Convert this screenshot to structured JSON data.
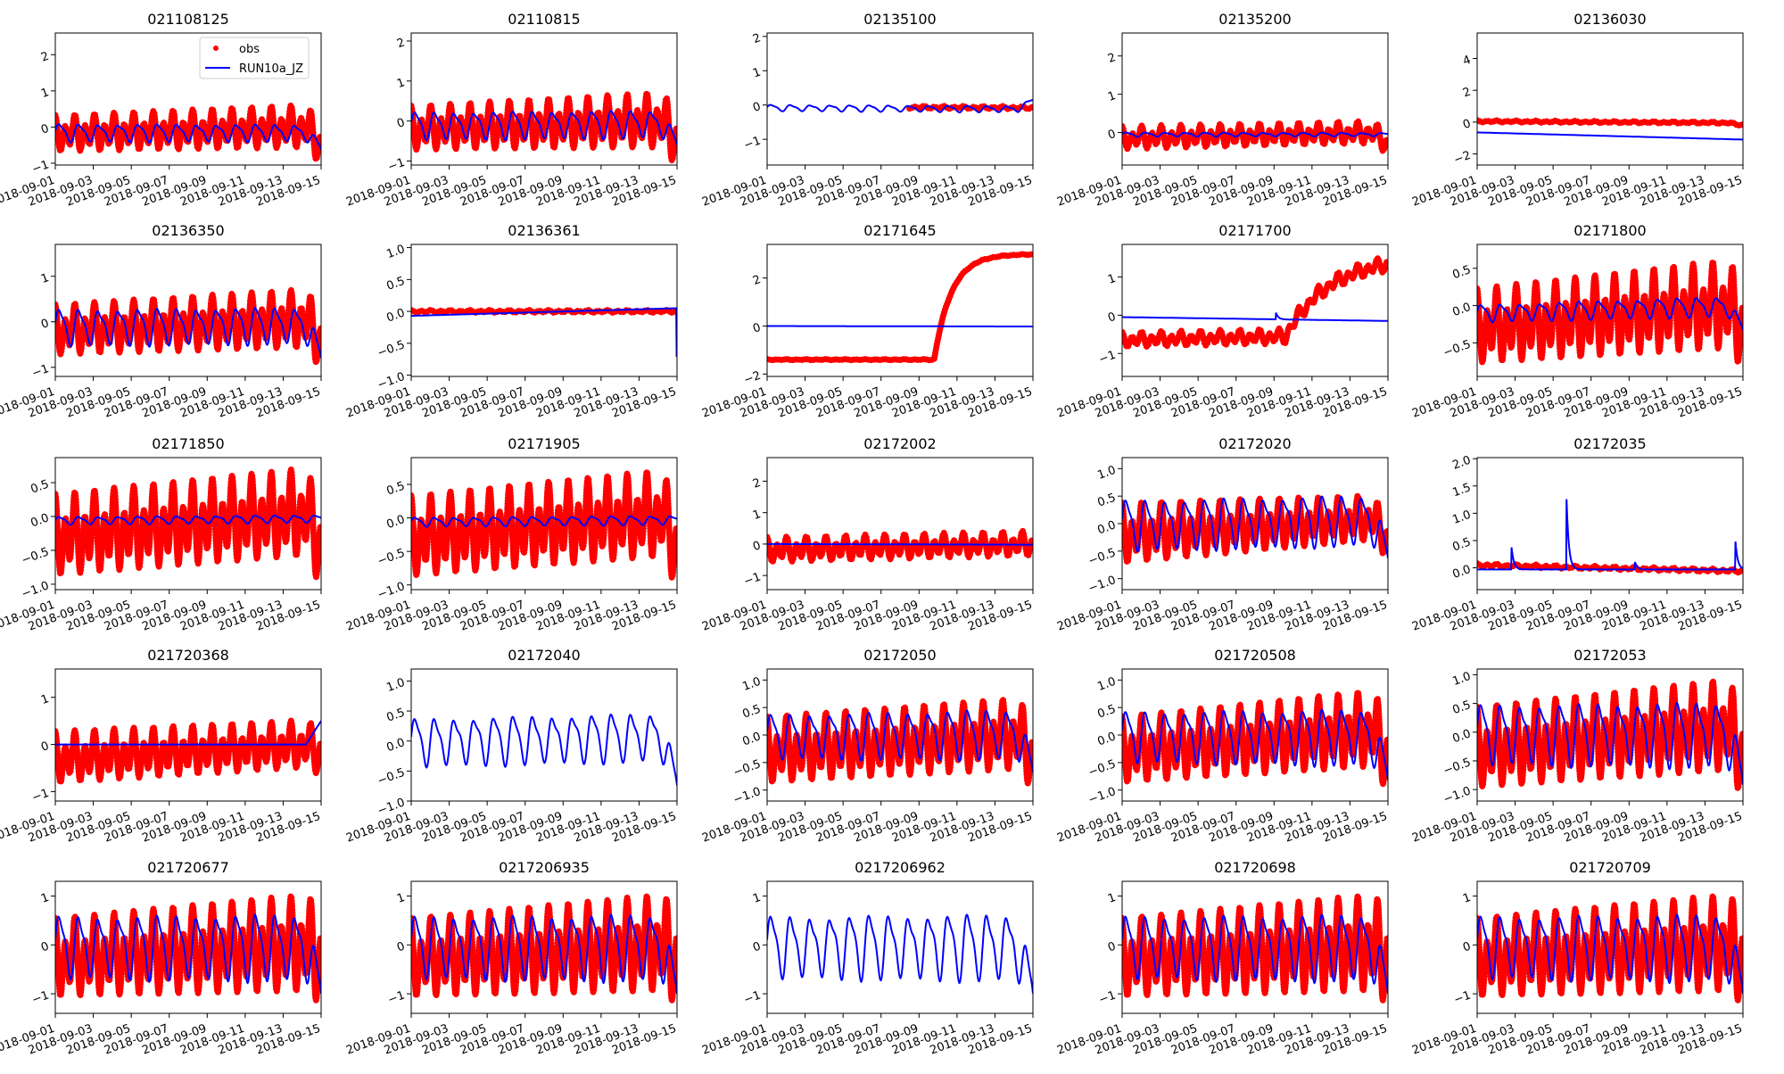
{
  "chart_data": {
    "type": "scatter+line",
    "layout": "5x5 grid",
    "x_range": [
      "2018-09-01",
      "2018-09-15"
    ],
    "xticks": [
      "2018-09-01",
      "2018-09-03",
      "2018-09-05",
      "2018-09-07",
      "2018-09-09",
      "2018-09-11",
      "2018-09-13",
      "2018-09-15"
    ],
    "legend": {
      "placement": "top-right of first panel",
      "entries": [
        {
          "label": "obs",
          "color": "#ff0000",
          "marker": "dot"
        },
        {
          "label": "RUN10a_JZ",
          "color": "#0000ff",
          "marker": "line"
        }
      ]
    },
    "series_description": "obs = observed water level (red dots, tidal oscillation defined by mean/amplitude ranges over the 14 days); model = RUN10a_JZ simulation (blue line)",
    "panels": [
      {
        "title": "021108125",
        "ylim": [
          -1.05,
          2.6
        ],
        "yticks": [
          "-1",
          "0",
          "1",
          "2"
        ],
        "obs": {
          "shape": "tide",
          "mean": [
            -0.2,
            0.0
          ],
          "amp": [
            0.5,
            0.6
          ],
          "end_drop": 0.5
        },
        "model": {
          "shape": "wave",
          "mean": [
            -0.15,
            -0.15
          ],
          "amp": [
            0.22,
            0.2
          ],
          "end_drop": 0.5
        }
      },
      {
        "title": "02110815",
        "ylim": [
          -1.1,
          2.2
        ],
        "yticks": [
          "-1",
          "0",
          "1",
          "2"
        ],
        "obs": {
          "shape": "tide",
          "mean": [
            -0.2,
            0.0
          ],
          "amp": [
            0.55,
            0.7
          ],
          "end_drop": 0.5
        },
        "model": {
          "shape": "wave",
          "mean": [
            -0.1,
            -0.05
          ],
          "amp": [
            0.3,
            0.3
          ],
          "end_drop": 0.6
        }
      },
      {
        "title": "02135100",
        "ylim": [
          -1.75,
          2.1
        ],
        "yticks": [
          "-1",
          "0",
          "1",
          "2"
        ],
        "obs": {
          "shape": "tide",
          "start_day": 7.5,
          "mean": [
            -0.05,
            -0.08
          ],
          "amp": [
            0.04,
            0.04
          ]
        },
        "model": {
          "shape": "wave",
          "mean": [
            -0.08,
            -0.12
          ],
          "amp": [
            0.08,
            0.08
          ],
          "end_drop": -0.25
        }
      },
      {
        "title": "02135200",
        "ylim": [
          -0.85,
          2.6
        ],
        "yticks": [
          "0",
          "1",
          "2"
        ],
        "obs": {
          "shape": "tide",
          "mean": [
            -0.15,
            0.0
          ],
          "amp": [
            0.3,
            0.3
          ],
          "end_drop": 0.3
        },
        "model": {
          "shape": "wave",
          "mean": [
            -0.05,
            -0.05
          ],
          "amp": [
            0.05,
            0.04
          ]
        }
      },
      {
        "title": "02136030",
        "ylim": [
          -2.7,
          5.6
        ],
        "yticks": [
          "-2",
          "0",
          "2",
          "4"
        ],
        "obs": {
          "shape": "tide",
          "mean": [
            0.05,
            -0.05
          ],
          "amp": [
            0.06,
            0.06
          ],
          "end_drop": 0.15
        },
        "model": {
          "shape": "flat",
          "mean": [
            -0.65,
            -1.1
          ]
        }
      },
      {
        "title": "02136350",
        "ylim": [
          -1.2,
          1.7
        ],
        "yticks": [
          "-1",
          "0",
          "1"
        ],
        "obs": {
          "shape": "tide",
          "mean": [
            -0.2,
            0.05
          ],
          "amp": [
            0.55,
            0.65
          ],
          "end_drop": 0.5
        },
        "model": {
          "shape": "wave",
          "mean": [
            -0.1,
            -0.05
          ],
          "amp": [
            0.35,
            0.35
          ],
          "end_drop": 0.8
        }
      },
      {
        "title": "02136361",
        "ylim": [
          -1.02,
          1.05
        ],
        "yticks": [
          "-1.0",
          "-0.5",
          "0.0",
          "0.5",
          "1.0"
        ],
        "obs": {
          "shape": "tide",
          "mean": [
            0.0,
            0.0
          ],
          "amp": [
            0.02,
            0.02
          ]
        },
        "model": {
          "shape": "flat",
          "mean": [
            -0.07,
            0.05
          ],
          "end_value": -0.7
        }
      },
      {
        "title": "02171645",
        "ylim": [
          -2.1,
          3.4
        ],
        "yticks": [
          "-2",
          "0",
          "2"
        ],
        "obs": {
          "shape": "tide",
          "mean": [
            -1.4,
            -1.4
          ],
          "amp": [
            0.02,
            0.02
          ],
          "rise": {
            "day": 8.8,
            "to": 3.0,
            "tau": 0.9
          }
        },
        "model": {
          "shape": "flat",
          "mean": [
            0.0,
            -0.02
          ]
        }
      },
      {
        "title": "02171700",
        "ylim": [
          -1.6,
          1.85
        ],
        "yticks": [
          "-1",
          "0",
          "1"
        ],
        "obs": {
          "shape": "tide",
          "mean": [
            -0.65,
            -0.5
          ],
          "amp": [
            0.2,
            0.2
          ],
          "rise": {
            "day": 8.6,
            "to": 1.5,
            "tau": 2.2
          }
        },
        "model": {
          "shape": "flat",
          "mean": [
            -0.05,
            -0.15
          ],
          "spikes": [
            {
              "day": 8.1,
              "value": 0.07
            }
          ]
        }
      },
      {
        "title": "02171800",
        "ylim": [
          -0.95,
          0.82
        ],
        "yticks": [
          "-0.5",
          "0.0",
          "0.5"
        ],
        "obs": {
          "shape": "tide",
          "mean": [
            -0.3,
            0.0
          ],
          "amp": [
            0.5,
            0.6
          ],
          "end_drop": 0.3
        },
        "model": {
          "shape": "wave",
          "mean": [
            -0.1,
            0.0
          ],
          "amp": [
            0.1,
            0.12
          ],
          "end_drop": 0.35
        }
      },
      {
        "title": "02171850",
        "ylim": [
          -1.08,
          0.87
        ],
        "yticks": [
          "-1.0",
          "-0.5",
          "0.0",
          "0.5"
        ],
        "obs": {
          "shape": "tide",
          "mean": [
            -0.3,
            0.05
          ],
          "amp": [
            0.6,
            0.65
          ],
          "end_drop": 0.5
        },
        "model": {
          "shape": "wave",
          "mean": [
            -0.06,
            -0.03
          ],
          "amp": [
            0.05,
            0.05
          ]
        }
      },
      {
        "title": "02171905",
        "ylim": [
          -1.07,
          0.9
        ],
        "yticks": [
          "-1.0",
          "-0.5",
          "0.0",
          "0.5"
        ],
        "obs": {
          "shape": "tide",
          "mean": [
            -0.3,
            0.05
          ],
          "amp": [
            0.6,
            0.65
          ],
          "end_drop": 0.5
        },
        "model": {
          "shape": "wave",
          "mean": [
            -0.06,
            -0.03
          ],
          "amp": [
            0.06,
            0.06
          ]
        }
      },
      {
        "title": "02172002",
        "ylim": [
          -1.45,
          2.75
        ],
        "yticks": [
          "-1",
          "0",
          "1",
          "2"
        ],
        "obs": {
          "shape": "tide",
          "mean": [
            -0.2,
            0.0
          ],
          "amp": [
            0.4,
            0.4
          ]
        },
        "model": {
          "shape": "flat",
          "mean": [
            0.0,
            -0.02
          ]
        }
      },
      {
        "title": "02172020",
        "ylim": [
          -1.2,
          1.2
        ],
        "yticks": [
          "-1.0",
          "-0.5",
          "0.0",
          "0.5",
          "1.0"
        ],
        "obs": {
          "shape": "tide",
          "mean": [
            -0.2,
            0.1
          ],
          "amp": [
            0.55,
            0.4
          ],
          "end_drop": 0.4
        },
        "model": {
          "shape": "wave",
          "mean": [
            0.0,
            0.1
          ],
          "amp": [
            0.4,
            0.4
          ],
          "end_drop": 0.8
        }
      },
      {
        "title": "02172035",
        "ylim": [
          -0.4,
          2.02
        ],
        "yticks": [
          "0.0",
          "0.5",
          "1.0",
          "1.5",
          "2.0"
        ],
        "obs": {
          "shape": "tide",
          "mean": [
            0.05,
            -0.06
          ],
          "amp": [
            0.03,
            0.03
          ]
        },
        "model": {
          "shape": "flat",
          "mean": [
            -0.03,
            -0.03
          ],
          "spikes": [
            {
              "day": 1.8,
              "value": 0.42
            },
            {
              "day": 4.7,
              "value": 1.35
            },
            {
              "day": 8.3,
              "value": 0.12
            },
            {
              "day": 13.6,
              "value": 0.5
            }
          ]
        }
      },
      {
        "title": "021720368",
        "ylim": [
          -1.2,
          1.6
        ],
        "yticks": [
          "-1",
          "0",
          "1"
        ],
        "obs": {
          "shape": "tide",
          "mean": [
            -0.3,
            0.0
          ],
          "amp": [
            0.55,
            0.5
          ],
          "end_drop": 0.2
        },
        "model": {
          "shape": "flat",
          "mean": [
            0.0,
            0.0
          ],
          "end_drop": -0.5
        }
      },
      {
        "title": "02172040",
        "ylim": [
          -1.0,
          1.2
        ],
        "yticks": [
          "-1.0",
          "-0.5",
          "0.0",
          "0.5",
          "1.0"
        ],
        "obs": null,
        "model": {
          "shape": "wave",
          "mean": [
            0.0,
            0.1
          ],
          "amp": [
            0.35,
            0.35
          ],
          "end_drop": 0.9
        }
      },
      {
        "title": "02172050",
        "ylim": [
          -1.2,
          1.2
        ],
        "yticks": [
          "-1.0",
          "-0.5",
          "0.0",
          "0.5",
          "1.0"
        ],
        "obs": {
          "shape": "tide",
          "mean": [
            -0.3,
            0.0
          ],
          "amp": [
            0.6,
            0.65
          ],
          "end_drop": 0.4
        },
        "model": {
          "shape": "wave",
          "mean": [
            0.0,
            0.05
          ],
          "amp": [
            0.35,
            0.4
          ],
          "end_drop": 0.8
        }
      },
      {
        "title": "021720508",
        "ylim": [
          -1.2,
          1.2
        ],
        "yticks": [
          "-1.0",
          "-0.5",
          "0.0",
          "0.5",
          "1.0"
        ],
        "obs": {
          "shape": "tide",
          "mean": [
            -0.3,
            0.1
          ],
          "amp": [
            0.6,
            0.7
          ],
          "end_drop": 0.5
        },
        "model": {
          "shape": "wave",
          "mean": [
            0.0,
            0.0
          ],
          "amp": [
            0.4,
            0.45
          ],
          "end_drop": 0.9
        }
      },
      {
        "title": "02172053",
        "ylim": [
          -1.2,
          1.1
        ],
        "yticks": [
          "-1.0",
          "-0.5",
          "0.0",
          "0.5",
          "1.0"
        ],
        "obs": {
          "shape": "tide",
          "mean": [
            -0.3,
            0.1
          ],
          "amp": [
            0.7,
            0.8
          ],
          "end_drop": 0.5
        },
        "model": {
          "shape": "wave",
          "mean": [
            0.0,
            0.0
          ],
          "amp": [
            0.45,
            0.5
          ],
          "end_drop": 1.0
        }
      },
      {
        "title": "021720677",
        "ylim": [
          -1.4,
          1.3
        ],
        "yticks": [
          "-1",
          "0",
          "1"
        ],
        "obs": {
          "shape": "tide",
          "mean": [
            -0.3,
            0.0
          ],
          "amp": [
            0.8,
            1.0
          ],
          "end_drop": 0.3
        },
        "model": {
          "shape": "wave",
          "mean": [
            0.0,
            0.0
          ],
          "amp": [
            0.55,
            0.6
          ],
          "end_drop": 1.1
        }
      },
      {
        "title": "0217206935",
        "ylim": [
          -1.4,
          1.3
        ],
        "yticks": [
          "-1",
          "0",
          "1"
        ],
        "obs": {
          "shape": "tide",
          "mean": [
            -0.3,
            0.0
          ],
          "amp": [
            0.8,
            1.0
          ],
          "end_drop": 0.3
        },
        "model": {
          "shape": "wave",
          "mean": [
            0.0,
            0.0
          ],
          "amp": [
            0.55,
            0.6
          ],
          "end_drop": 1.1
        }
      },
      {
        "title": "0217206962",
        "ylim": [
          -1.4,
          1.3
        ],
        "yticks": [
          "-1",
          "0",
          "1"
        ],
        "obs": null,
        "model": {
          "shape": "wave",
          "mean": [
            0.0,
            0.0
          ],
          "amp": [
            0.55,
            0.6
          ],
          "end_drop": 1.1
        }
      },
      {
        "title": "021720698",
        "ylim": [
          -1.4,
          1.3
        ],
        "yticks": [
          "-1",
          "0",
          "1"
        ],
        "obs": {
          "shape": "tide",
          "mean": [
            -0.3,
            0.0
          ],
          "amp": [
            0.8,
            1.0
          ],
          "end_drop": 0.3
        },
        "model": {
          "shape": "wave",
          "mean": [
            0.0,
            0.0
          ],
          "amp": [
            0.55,
            0.6
          ],
          "end_drop": 1.1
        }
      },
      {
        "title": "021720709",
        "ylim": [
          -1.4,
          1.3
        ],
        "yticks": [
          "-1",
          "0",
          "1"
        ],
        "obs": {
          "shape": "tide",
          "mean": [
            -0.3,
            0.0
          ],
          "amp": [
            0.8,
            1.0
          ],
          "end_drop": 0.3
        },
        "model": {
          "shape": "wave",
          "mean": [
            0.0,
            0.0
          ],
          "amp": [
            0.55,
            0.6
          ],
          "end_drop": 1.1
        }
      }
    ]
  }
}
